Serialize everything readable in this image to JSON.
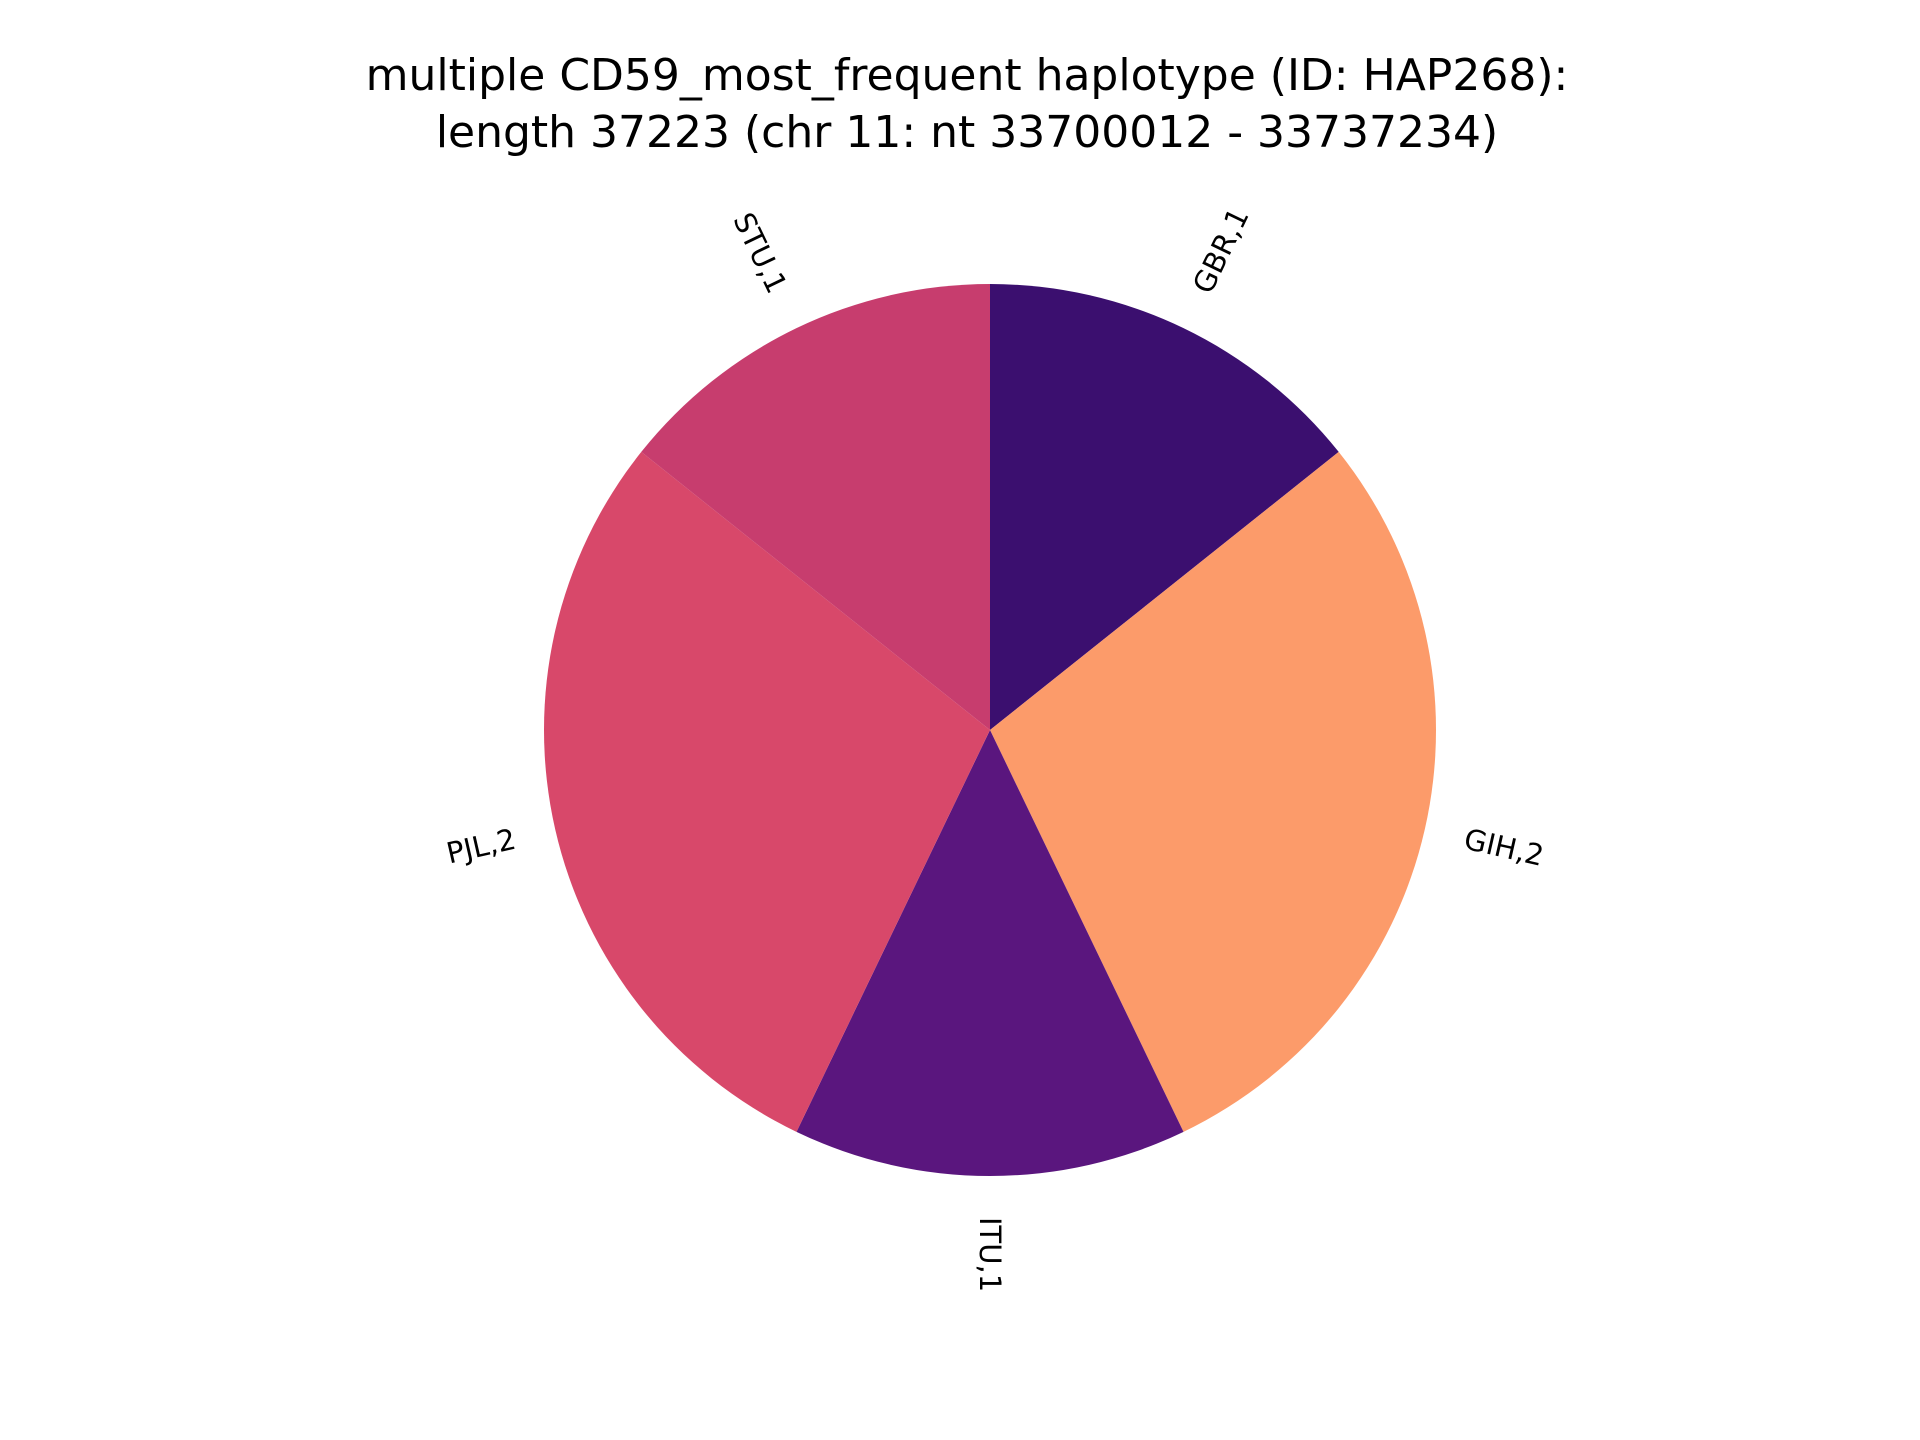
{
  "chart_data": {
    "type": "pie",
    "title_lines": [
      "multiple CD59_most_frequent haplotype (ID: HAP268):",
      "length 37223 (chr 11: nt 33700012 - 33737234)"
    ],
    "start_angle_deg": 90,
    "direction": "clockwise",
    "slices": [
      {
        "name": "GBR",
        "label": "GBR,1",
        "value": 1,
        "color": "#3b0f6f"
      },
      {
        "name": "GIH",
        "label": "GIH,2",
        "value": 2,
        "color": "#fc9b6a"
      },
      {
        "name": "ITU",
        "label": "ITU,1",
        "value": 1,
        "color": "#5a167e"
      },
      {
        "name": "PJL",
        "label": "PJL,2",
        "value": 2,
        "color": "#d8486a"
      },
      {
        "name": "STU",
        "label": "STU,1",
        "value": 1,
        "color": "#c73d6e"
      }
    ]
  }
}
